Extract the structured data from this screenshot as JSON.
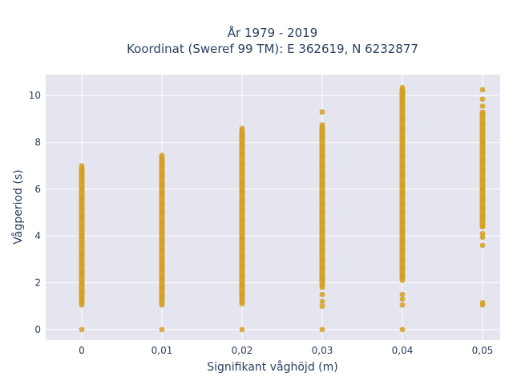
{
  "chart_data": {
    "type": "scatter",
    "title_line1": "År 1979 - 2019",
    "title_line2": "Koordinat (Sweref 99 TM): E 362619, N 6232877",
    "xlabel": "Signifikant våghöjd (m)",
    "ylabel": "Vågperiod (s)",
    "xlim": [
      -0.0045,
      0.0522
    ],
    "ylim": [
      -0.45,
      10.9
    ],
    "x_ticks": [
      0,
      0.01,
      0.02,
      0.03,
      0.04,
      0.05
    ],
    "x_tick_labels": [
      "0",
      "0,01",
      "0,02",
      "0,03",
      "0,04",
      "0,05"
    ],
    "y_ticks": [
      0,
      2,
      4,
      6,
      8,
      10
    ],
    "y_tick_labels": [
      "0",
      "2",
      "4",
      "6",
      "8",
      "10"
    ],
    "grid": true,
    "marker_color": "#D4A020",
    "plot_bg": "#E5E5EF",
    "series": [
      {
        "points": [
          {
            "x": 0,
            "y": 0
          },
          {
            "x": 0,
            "y": 1.05
          },
          {
            "x": 0,
            "y": 1.3
          },
          {
            "x": 0,
            "y": 1.6
          },
          {
            "x": 0,
            "y": 2.0
          },
          {
            "x": 0,
            "y": 2.4
          },
          {
            "x": 0,
            "y": 2.8
          },
          {
            "x": 0,
            "y": 3.2
          },
          {
            "x": 0,
            "y": 3.6
          },
          {
            "x": 0,
            "y": 4.0
          },
          {
            "x": 0,
            "y": 4.4
          },
          {
            "x": 0,
            "y": 4.8
          },
          {
            "x": 0,
            "y": 5.2
          },
          {
            "x": 0,
            "y": 5.6
          },
          {
            "x": 0,
            "y": 6.0
          },
          {
            "x": 0,
            "y": 6.3
          },
          {
            "x": 0,
            "y": 6.6
          },
          {
            "x": 0,
            "y": 6.8
          },
          {
            "x": 0,
            "y": 7.0
          },
          {
            "x": 0.01,
            "y": 0
          },
          {
            "x": 0.01,
            "y": 1.05
          },
          {
            "x": 0.01,
            "y": 1.4
          },
          {
            "x": 0.01,
            "y": 1.8
          },
          {
            "x": 0.01,
            "y": 2.2
          },
          {
            "x": 0.01,
            "y": 2.6
          },
          {
            "x": 0.01,
            "y": 3.0
          },
          {
            "x": 0.01,
            "y": 3.4
          },
          {
            "x": 0.01,
            "y": 3.8
          },
          {
            "x": 0.01,
            "y": 4.2
          },
          {
            "x": 0.01,
            "y": 4.6
          },
          {
            "x": 0.01,
            "y": 5.0
          },
          {
            "x": 0.01,
            "y": 5.4
          },
          {
            "x": 0.01,
            "y": 5.8
          },
          {
            "x": 0.01,
            "y": 6.2
          },
          {
            "x": 0.01,
            "y": 6.6
          },
          {
            "x": 0.01,
            "y": 7.0
          },
          {
            "x": 0.01,
            "y": 7.3
          },
          {
            "x": 0.01,
            "y": 7.45
          },
          {
            "x": 0.02,
            "y": 0
          },
          {
            "x": 0.02,
            "y": 1.1
          },
          {
            "x": 0.02,
            "y": 1.5
          },
          {
            "x": 0.02,
            "y": 1.9
          },
          {
            "x": 0.02,
            "y": 2.3
          },
          {
            "x": 0.02,
            "y": 2.7
          },
          {
            "x": 0.02,
            "y": 3.1
          },
          {
            "x": 0.02,
            "y": 3.5
          },
          {
            "x": 0.02,
            "y": 3.9
          },
          {
            "x": 0.02,
            "y": 4.3
          },
          {
            "x": 0.02,
            "y": 4.7
          },
          {
            "x": 0.02,
            "y": 5.1
          },
          {
            "x": 0.02,
            "y": 5.5
          },
          {
            "x": 0.02,
            "y": 5.9
          },
          {
            "x": 0.02,
            "y": 6.3
          },
          {
            "x": 0.02,
            "y": 6.7
          },
          {
            "x": 0.02,
            "y": 7.1
          },
          {
            "x": 0.02,
            "y": 7.5
          },
          {
            "x": 0.02,
            "y": 7.9
          },
          {
            "x": 0.02,
            "y": 8.3
          },
          {
            "x": 0.02,
            "y": 8.6
          },
          {
            "x": 0.03,
            "y": 0
          },
          {
            "x": 0.03,
            "y": 1.0
          },
          {
            "x": 0.03,
            "y": 1.2
          },
          {
            "x": 0.03,
            "y": 1.5
          },
          {
            "x": 0.03,
            "y": 1.8
          },
          {
            "x": 0.03,
            "y": 2.2
          },
          {
            "x": 0.03,
            "y": 2.6
          },
          {
            "x": 0.03,
            "y": 3.0
          },
          {
            "x": 0.03,
            "y": 3.4
          },
          {
            "x": 0.03,
            "y": 3.8
          },
          {
            "x": 0.03,
            "y": 4.2
          },
          {
            "x": 0.03,
            "y": 4.6
          },
          {
            "x": 0.03,
            "y": 5.0
          },
          {
            "x": 0.03,
            "y": 5.4
          },
          {
            "x": 0.03,
            "y": 5.8
          },
          {
            "x": 0.03,
            "y": 6.2
          },
          {
            "x": 0.03,
            "y": 6.6
          },
          {
            "x": 0.03,
            "y": 7.0
          },
          {
            "x": 0.03,
            "y": 7.4
          },
          {
            "x": 0.03,
            "y": 7.8
          },
          {
            "x": 0.03,
            "y": 8.2
          },
          {
            "x": 0.03,
            "y": 8.5
          },
          {
            "x": 0.03,
            "y": 8.75
          },
          {
            "x": 0.03,
            "y": 9.3
          },
          {
            "x": 0.04,
            "y": 0
          },
          {
            "x": 0.04,
            "y": 1.05
          },
          {
            "x": 0.04,
            "y": 1.3
          },
          {
            "x": 0.04,
            "y": 1.5
          },
          {
            "x": 0.04,
            "y": 2.1
          },
          {
            "x": 0.04,
            "y": 2.3
          },
          {
            "x": 0.04,
            "y": 2.6
          },
          {
            "x": 0.04,
            "y": 3.0
          },
          {
            "x": 0.04,
            "y": 3.4
          },
          {
            "x": 0.04,
            "y": 3.8
          },
          {
            "x": 0.04,
            "y": 4.2
          },
          {
            "x": 0.04,
            "y": 4.6
          },
          {
            "x": 0.04,
            "y": 5.0
          },
          {
            "x": 0.04,
            "y": 5.4
          },
          {
            "x": 0.04,
            "y": 5.8
          },
          {
            "x": 0.04,
            "y": 6.2
          },
          {
            "x": 0.04,
            "y": 6.6
          },
          {
            "x": 0.04,
            "y": 7.0
          },
          {
            "x": 0.04,
            "y": 7.4
          },
          {
            "x": 0.04,
            "y": 7.8
          },
          {
            "x": 0.04,
            "y": 8.2
          },
          {
            "x": 0.04,
            "y": 8.6
          },
          {
            "x": 0.04,
            "y": 9.0
          },
          {
            "x": 0.04,
            "y": 9.4
          },
          {
            "x": 0.04,
            "y": 9.7
          },
          {
            "x": 0.04,
            "y": 10.0
          },
          {
            "x": 0.04,
            "y": 10.2
          },
          {
            "x": 0.04,
            "y": 10.35
          },
          {
            "x": 0.05,
            "y": 1.05
          },
          {
            "x": 0.05,
            "y": 1.15
          },
          {
            "x": 0.05,
            "y": 3.6
          },
          {
            "x": 0.05,
            "y": 3.95
          },
          {
            "x": 0.05,
            "y": 4.1
          },
          {
            "x": 0.05,
            "y": 4.4
          },
          {
            "x": 0.05,
            "y": 4.8
          },
          {
            "x": 0.05,
            "y": 5.2
          },
          {
            "x": 0.05,
            "y": 5.6
          },
          {
            "x": 0.05,
            "y": 6.0
          },
          {
            "x": 0.05,
            "y": 6.4
          },
          {
            "x": 0.05,
            "y": 6.8
          },
          {
            "x": 0.05,
            "y": 7.2
          },
          {
            "x": 0.05,
            "y": 7.6
          },
          {
            "x": 0.05,
            "y": 8.0
          },
          {
            "x": 0.05,
            "y": 8.4
          },
          {
            "x": 0.05,
            "y": 8.8
          },
          {
            "x": 0.05,
            "y": 9.2
          },
          {
            "x": 0.05,
            "y": 9.55
          },
          {
            "x": 0.05,
            "y": 9.85
          },
          {
            "x": 0.05,
            "y": 10.25
          }
        ],
        "bands": [
          {
            "x": 0,
            "y_from": 1.05,
            "y_to": 7.0
          },
          {
            "x": 0.01,
            "y_from": 1.05,
            "y_to": 7.45
          },
          {
            "x": 0.02,
            "y_from": 1.1,
            "y_to": 8.6
          },
          {
            "x": 0.03,
            "y_from": 1.8,
            "y_to": 8.75
          },
          {
            "x": 0.04,
            "y_from": 2.1,
            "y_to": 10.35
          },
          {
            "x": 0.05,
            "y_from": 4.3,
            "y_to": 9.4
          }
        ]
      }
    ]
  }
}
